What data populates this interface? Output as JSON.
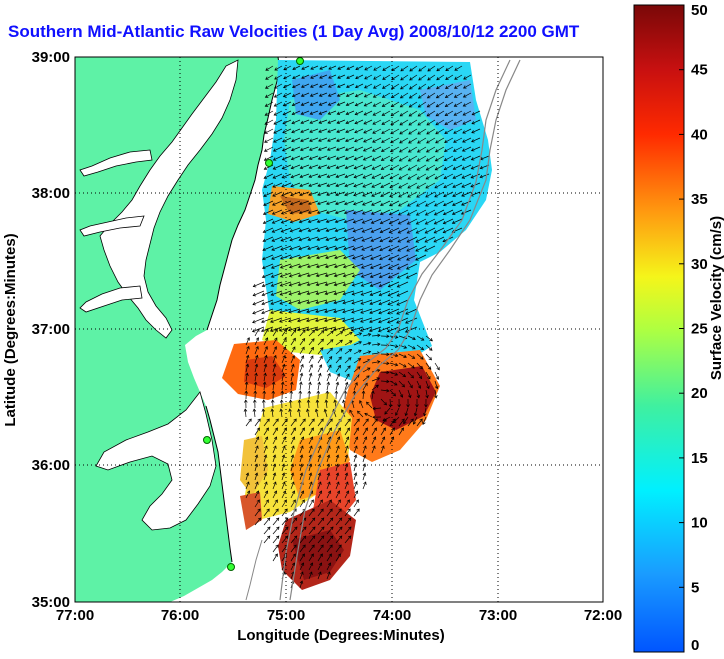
{
  "title": "Southern Mid-Atlantic Raw Velocities (1 Day Avg) 2008/10/12 2200 GMT",
  "map": {
    "x_axis_label": "Longitude (Degrees:Minutes)",
    "y_axis_label": "Latitude (Degrees:Minutes)",
    "x_ticks": [
      "77:00",
      "76:00",
      "75:00",
      "74:00",
      "73:00",
      "72:00"
    ],
    "y_ticks": [
      "39:00",
      "38:00",
      "37:00",
      "36:00",
      "35:00"
    ],
    "x_range_deg_west": [
      77,
      72
    ],
    "y_range_deg_north": [
      35,
      39
    ],
    "grid": "dotted",
    "land_color": "#5ef2a6",
    "water_color": "#ffffff"
  },
  "colorbar": {
    "label": "Surface Velocity (cm/s)",
    "ticks": [
      "0",
      "5",
      "10",
      "15",
      "20",
      "25",
      "30",
      "35",
      "40",
      "45",
      "50"
    ],
    "range": [
      0,
      50
    ],
    "colormap": "jet"
  }
}
